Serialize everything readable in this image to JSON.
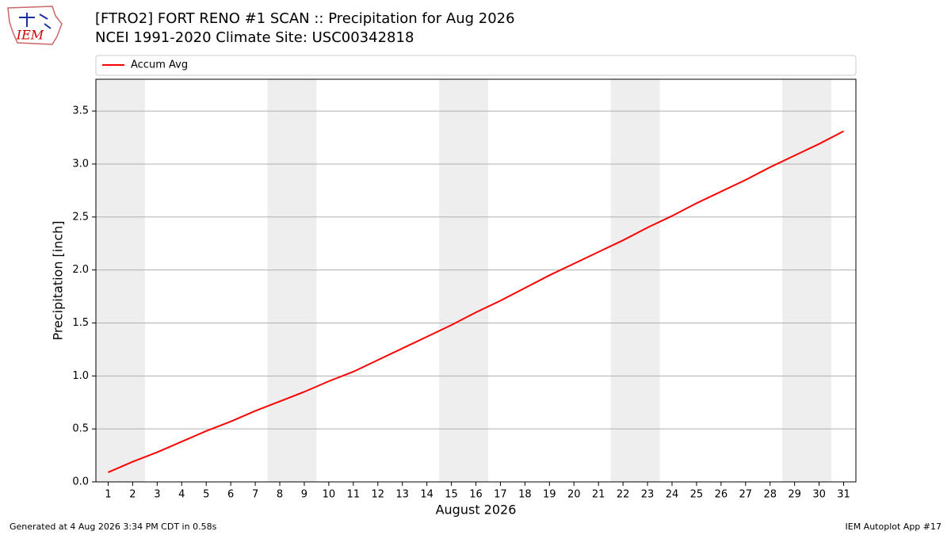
{
  "logo": "IEM",
  "footer": {
    "left": "Generated at 4 Aug 2026 3:34 PM CDT in 0.58s",
    "right": "IEM Autoplot App #17"
  },
  "chart_data": {
    "type": "line",
    "title": "[FTRO2] FORT RENO #1 SCAN :: Precipitation for Aug 2026",
    "subtitle": "NCEI 1991-2020 Climate Site: USC00342818",
    "x_label": "August 2026",
    "y_label": "Precipitation [inch]",
    "x": [
      1,
      2,
      3,
      4,
      5,
      6,
      7,
      8,
      9,
      10,
      11,
      12,
      13,
      14,
      15,
      16,
      17,
      18,
      19,
      20,
      21,
      22,
      23,
      24,
      25,
      26,
      27,
      28,
      29,
      30,
      31
    ],
    "series": [
      {
        "name": "Accum Avg",
        "color": "#ff0000",
        "values": [
          0.09,
          0.19,
          0.28,
          0.38,
          0.48,
          0.57,
          0.67,
          0.76,
          0.85,
          0.95,
          1.04,
          1.15,
          1.26,
          1.37,
          1.48,
          1.6,
          1.71,
          1.83,
          1.95,
          2.06,
          2.17,
          2.28,
          2.4,
          2.51,
          2.63,
          2.74,
          2.85,
          2.97,
          3.08,
          3.19,
          3.31
        ]
      }
    ],
    "xlim": [
      0.5,
      31.5
    ],
    "xticks": [
      1,
      2,
      3,
      4,
      5,
      6,
      7,
      8,
      9,
      10,
      11,
      12,
      13,
      14,
      15,
      16,
      17,
      18,
      19,
      20,
      21,
      22,
      23,
      24,
      25,
      26,
      27,
      28,
      29,
      30,
      31
    ],
    "ylim": [
      0,
      3.8
    ],
    "yticks": [
      {
        "value": 0,
        "label": "0.0"
      },
      0.5,
      {
        "value": 1,
        "label": "1.0"
      },
      1.5,
      {
        "value": 2,
        "label": "2.0"
      },
      2.5,
      {
        "value": 3,
        "label": "3.0"
      },
      3.5
    ],
    "grid": true,
    "legend": "top",
    "weekend_spans": [
      [
        0.5,
        2.5
      ],
      [
        7.5,
        9.5
      ],
      [
        14.5,
        16.5
      ],
      [
        21.5,
        23.5
      ],
      [
        28.5,
        30.5
      ]
    ],
    "weekend_color": "#eeeeee"
  }
}
